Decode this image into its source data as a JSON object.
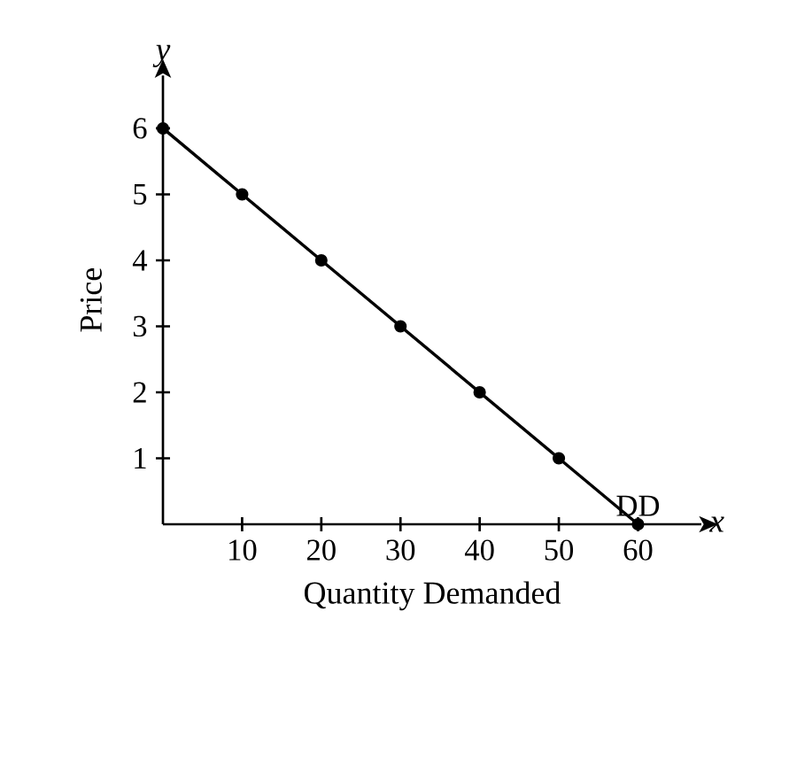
{
  "chart_data": {
    "type": "line",
    "xlabel": "Quantity Demanded",
    "ylabel": "Price",
    "x": [
      0,
      10,
      20,
      30,
      40,
      50,
      60
    ],
    "series": [
      {
        "color": "#000000",
        "values": [
          6,
          5,
          4,
          3,
          2,
          1,
          0
        ]
      }
    ],
    "xlim": [
      0,
      68
    ],
    "ylim": [
      0,
      6.8
    ],
    "xticks": [
      10,
      20,
      30,
      40,
      50,
      60
    ],
    "yticks": [
      1,
      2,
      3,
      4,
      5,
      6
    ],
    "marker": "circle",
    "line_style": "solid",
    "grid": false,
    "annotations": [
      "x",
      "y",
      {
        "text": "DD",
        "x": 60,
        "y": 0
      }
    ]
  }
}
